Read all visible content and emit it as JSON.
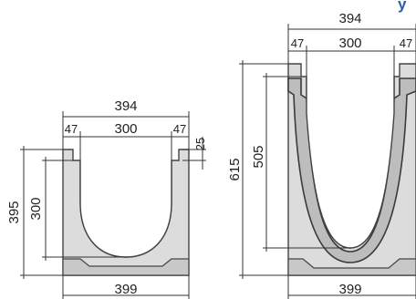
{
  "header": {
    "fragment_text": "y"
  },
  "small_channel": {
    "top_width": "394",
    "left_wall": "47",
    "inner_width": "300",
    "right_wall": "47",
    "lip_height": "25",
    "total_height": "395",
    "channel_depth": "300",
    "base_width": "399"
  },
  "large_channel": {
    "top_width": "394",
    "left_wall": "47",
    "inner_width": "300",
    "right_wall": "47",
    "total_height": "615",
    "channel_depth": "505",
    "base_width": "399"
  },
  "colors": {
    "header_accent": "#2a5fa8",
    "concrete": "#dcdcdc",
    "concrete_dark": "#bdbdbd",
    "line": "#333333"
  }
}
